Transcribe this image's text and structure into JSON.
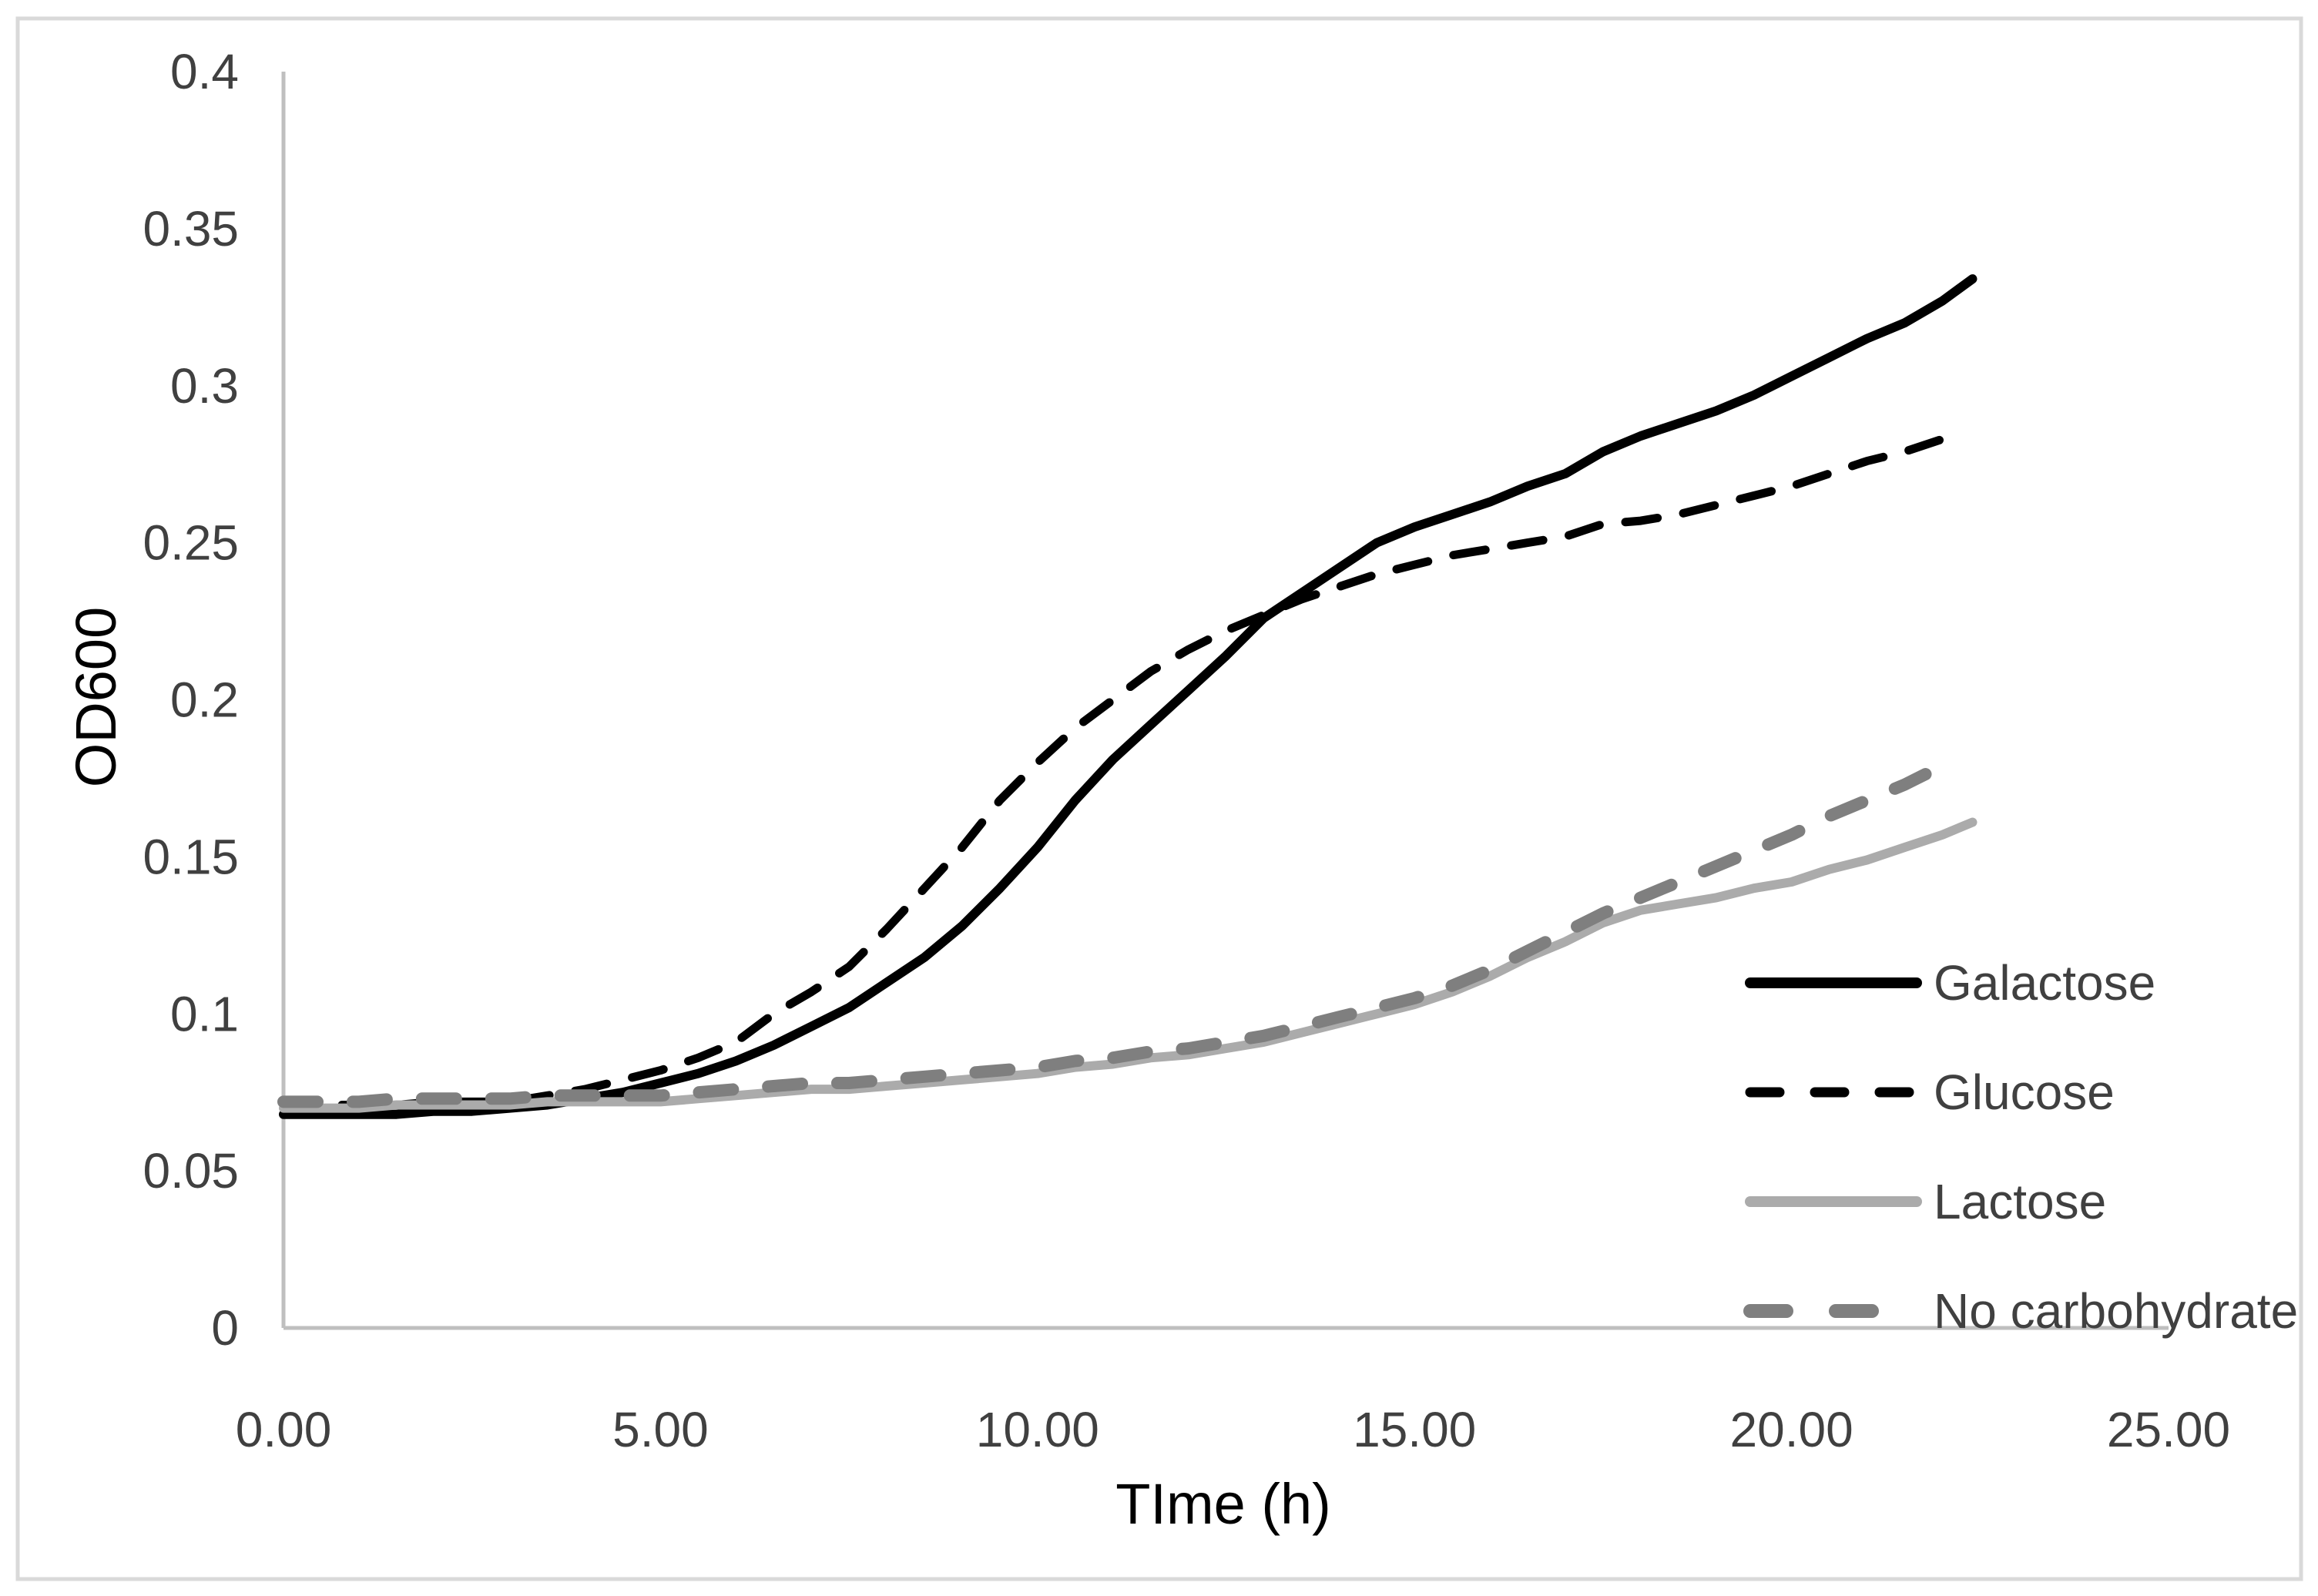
{
  "chart_data": {
    "type": "line",
    "title": "",
    "xlabel": "TIme (h)",
    "ylabel": "OD600",
    "xlim": [
      0,
      25
    ],
    "ylim": [
      0,
      0.4
    ],
    "grid": false,
    "legend_position": "inside-right",
    "x_ticks": [
      {
        "value": 0,
        "label": "0.00"
      },
      {
        "value": 5,
        "label": "5.00"
      },
      {
        "value": 10,
        "label": "10.00"
      },
      {
        "value": 15,
        "label": "15.00"
      },
      {
        "value": 20,
        "label": "20.00"
      },
      {
        "value": 25,
        "label": "25.00"
      }
    ],
    "y_ticks": [
      {
        "value": 0,
        "label": "0"
      },
      {
        "value": 0.05,
        "label": "0.05"
      },
      {
        "value": 0.1,
        "label": "0.1"
      },
      {
        "value": 0.15,
        "label": "0.15"
      },
      {
        "value": 0.2,
        "label": "0.2"
      },
      {
        "value": 0.25,
        "label": "0.25"
      },
      {
        "value": 0.3,
        "label": "0.3"
      },
      {
        "value": 0.35,
        "label": "0.35"
      },
      {
        "value": 0.4,
        "label": "0.4"
      }
    ],
    "series": [
      {
        "name": "Galactose",
        "color": "#000000",
        "line_style": "solid",
        "points": [
          [
            0,
            0.068
          ],
          [
            0.5,
            0.068
          ],
          [
            1,
            0.068
          ],
          [
            1.5,
            0.068
          ],
          [
            2,
            0.069
          ],
          [
            2.5,
            0.069
          ],
          [
            3,
            0.07
          ],
          [
            3.5,
            0.071
          ],
          [
            4,
            0.073
          ],
          [
            4.5,
            0.075
          ],
          [
            5,
            0.078
          ],
          [
            5.5,
            0.081
          ],
          [
            6,
            0.085
          ],
          [
            6.5,
            0.09
          ],
          [
            7,
            0.096
          ],
          [
            7.5,
            0.102
          ],
          [
            8,
            0.11
          ],
          [
            8.5,
            0.118
          ],
          [
            9,
            0.128
          ],
          [
            9.5,
            0.14
          ],
          [
            10,
            0.153
          ],
          [
            10.5,
            0.168
          ],
          [
            11,
            0.181
          ],
          [
            11.5,
            0.192
          ],
          [
            12,
            0.203
          ],
          [
            12.5,
            0.214
          ],
          [
            13,
            0.226
          ],
          [
            13.5,
            0.234
          ],
          [
            14,
            0.242
          ],
          [
            14.5,
            0.25
          ],
          [
            15,
            0.255
          ],
          [
            15.5,
            0.259
          ],
          [
            16,
            0.263
          ],
          [
            16.5,
            0.268
          ],
          [
            17,
            0.272
          ],
          [
            17.5,
            0.279
          ],
          [
            18,
            0.284
          ],
          [
            18.5,
            0.288
          ],
          [
            19,
            0.292
          ],
          [
            19.5,
            0.297
          ],
          [
            20,
            0.303
          ],
          [
            20.5,
            0.309
          ],
          [
            21,
            0.315
          ],
          [
            21.5,
            0.32
          ],
          [
            22,
            0.327
          ],
          [
            22.4,
            0.334
          ]
        ]
      },
      {
        "name": "Glucose",
        "color": "#000000",
        "line_style": "dashed",
        "points": [
          [
            0,
            0.071
          ],
          [
            0.5,
            0.071
          ],
          [
            1,
            0.071
          ],
          [
            1.5,
            0.071
          ],
          [
            2,
            0.072
          ],
          [
            2.5,
            0.072
          ],
          [
            3,
            0.072
          ],
          [
            3.5,
            0.074
          ],
          [
            4,
            0.076
          ],
          [
            4.5,
            0.079
          ],
          [
            5,
            0.082
          ],
          [
            5.5,
            0.086
          ],
          [
            6,
            0.091
          ],
          [
            6.5,
            0.1
          ],
          [
            7,
            0.107
          ],
          [
            7.5,
            0.115
          ],
          [
            8,
            0.127
          ],
          [
            8.5,
            0.14
          ],
          [
            9,
            0.153
          ],
          [
            9.5,
            0.168
          ],
          [
            10,
            0.18
          ],
          [
            10.5,
            0.191
          ],
          [
            11,
            0.2
          ],
          [
            11.5,
            0.209
          ],
          [
            12,
            0.216
          ],
          [
            12.5,
            0.222
          ],
          [
            13,
            0.227
          ],
          [
            13.5,
            0.232
          ],
          [
            14,
            0.236
          ],
          [
            14.5,
            0.24
          ],
          [
            15,
            0.243
          ],
          [
            15.5,
            0.246
          ],
          [
            16,
            0.248
          ],
          [
            16.5,
            0.25
          ],
          [
            17,
            0.252
          ],
          [
            17.5,
            0.256
          ],
          [
            18,
            0.257
          ],
          [
            18.5,
            0.259
          ],
          [
            19,
            0.262
          ],
          [
            19.5,
            0.265
          ],
          [
            20,
            0.268
          ],
          [
            20.5,
            0.272
          ],
          [
            21,
            0.276
          ],
          [
            21.5,
            0.279
          ],
          [
            22,
            0.283
          ],
          [
            22.1,
            0.285
          ]
        ]
      },
      {
        "name": "Lactose",
        "color": "#ABABAB",
        "line_style": "solid",
        "points": [
          [
            0,
            0.07
          ],
          [
            0.5,
            0.07
          ],
          [
            1,
            0.07
          ],
          [
            1.5,
            0.071
          ],
          [
            2,
            0.071
          ],
          [
            2.5,
            0.071
          ],
          [
            3,
            0.071
          ],
          [
            3.5,
            0.072
          ],
          [
            4,
            0.072
          ],
          [
            4.5,
            0.072
          ],
          [
            5,
            0.072
          ],
          [
            5.5,
            0.073
          ],
          [
            6,
            0.074
          ],
          [
            6.5,
            0.075
          ],
          [
            7,
            0.076
          ],
          [
            7.5,
            0.076
          ],
          [
            8,
            0.077
          ],
          [
            8.5,
            0.078
          ],
          [
            9,
            0.079
          ],
          [
            9.5,
            0.08
          ],
          [
            10,
            0.081
          ],
          [
            10.5,
            0.083
          ],
          [
            11,
            0.084
          ],
          [
            11.5,
            0.086
          ],
          [
            12,
            0.087
          ],
          [
            12.5,
            0.089
          ],
          [
            13,
            0.091
          ],
          [
            13.5,
            0.094
          ],
          [
            14,
            0.097
          ],
          [
            14.5,
            0.1
          ],
          [
            15,
            0.103
          ],
          [
            15.5,
            0.107
          ],
          [
            16,
            0.112
          ],
          [
            16.5,
            0.118
          ],
          [
            17,
            0.123
          ],
          [
            17.5,
            0.129
          ],
          [
            18,
            0.133
          ],
          [
            18.5,
            0.135
          ],
          [
            19,
            0.137
          ],
          [
            19.5,
            0.14
          ],
          [
            20,
            0.142
          ],
          [
            20.5,
            0.146
          ],
          [
            21,
            0.149
          ],
          [
            21.5,
            0.153
          ],
          [
            22,
            0.157
          ],
          [
            22.4,
            0.161
          ]
        ]
      },
      {
        "name": "No carbohydrate",
        "color": "#7F7F7F",
        "line_style": "dashed-thick",
        "points": [
          [
            0,
            0.072
          ],
          [
            0.5,
            0.072
          ],
          [
            1,
            0.072
          ],
          [
            1.5,
            0.073
          ],
          [
            2,
            0.073
          ],
          [
            2.5,
            0.073
          ],
          [
            3,
            0.073
          ],
          [
            3.5,
            0.074
          ],
          [
            4,
            0.074
          ],
          [
            4.5,
            0.074
          ],
          [
            5,
            0.074
          ],
          [
            5.5,
            0.075
          ],
          [
            6,
            0.076
          ],
          [
            6.5,
            0.077
          ],
          [
            7,
            0.078
          ],
          [
            7.5,
            0.078
          ],
          [
            8,
            0.079
          ],
          [
            8.5,
            0.08
          ],
          [
            9,
            0.081
          ],
          [
            9.5,
            0.082
          ],
          [
            10,
            0.083
          ],
          [
            10.5,
            0.085
          ],
          [
            11,
            0.086
          ],
          [
            11.5,
            0.088
          ],
          [
            12,
            0.089
          ],
          [
            12.5,
            0.091
          ],
          [
            13,
            0.093
          ],
          [
            13.5,
            0.096
          ],
          [
            14,
            0.099
          ],
          [
            14.5,
            0.102
          ],
          [
            15,
            0.105
          ],
          [
            15.5,
            0.109
          ],
          [
            16,
            0.114
          ],
          [
            16.5,
            0.12
          ],
          [
            17,
            0.126
          ],
          [
            17.5,
            0.132
          ],
          [
            18,
            0.137
          ],
          [
            18.5,
            0.142
          ],
          [
            19,
            0.147
          ],
          [
            19.5,
            0.152
          ],
          [
            20,
            0.157
          ],
          [
            20.5,
            0.163
          ],
          [
            21,
            0.168
          ],
          [
            21.5,
            0.173
          ],
          [
            22,
            0.179
          ],
          [
            22.15,
            0.182
          ]
        ]
      }
    ],
    "legend": [
      "Galactose",
      "Glucose",
      "Lactose",
      "No carbohydrate"
    ],
    "colors": {
      "axis_line": "#BFBFBF",
      "tick_text": "#404040",
      "figure_border": "#D9D9D9",
      "background": "#FFFFFF"
    }
  }
}
